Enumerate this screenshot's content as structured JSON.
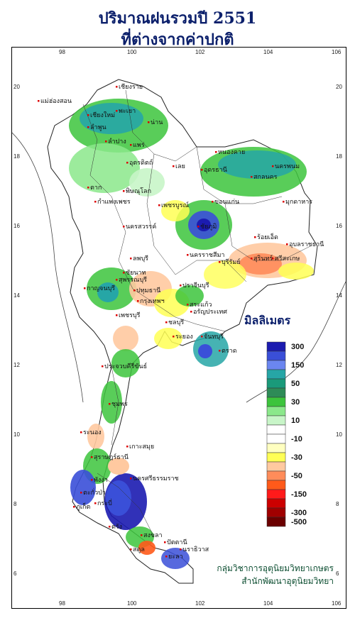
{
  "title_line1": "ปริมาณฝนรวมปี 2551",
  "title_line2": "ที่ต่างจากค่าปกติ",
  "unit_label": "มิลลิเมตร",
  "credit_line1": "กลุ่มวิชาการอุตุนิยมวิทยาเกษตร",
  "credit_line2": "สำนักพัฒนาอุตุนิยมวิทยา",
  "axes": {
    "lon_ticks": [
      "98",
      "100",
      "102",
      "104",
      "106"
    ],
    "lat_ticks": [
      "20",
      "18",
      "16",
      "14",
      "12",
      "10",
      "8",
      "6"
    ]
  },
  "legend": {
    "items": [
      {
        "label": "300",
        "color": "#1b1bb0"
      },
      {
        "label": "",
        "color": "#3a4fd8"
      },
      {
        "label": "150",
        "color": "#6b86f0"
      },
      {
        "label": "",
        "color": "#26a6a6"
      },
      {
        "label": "50",
        "color": "#1a9a7a"
      },
      {
        "label": "",
        "color": "#2e8b57"
      },
      {
        "label": "30",
        "color": "#3cc43c"
      },
      {
        "label": "",
        "color": "#8be88b"
      },
      {
        "label": "10",
        "color": "#c8f5c8"
      },
      {
        "label": "",
        "color": "#ffffff"
      },
      {
        "label": "-10",
        "color": "#ffffff"
      },
      {
        "label": "",
        "color": "#ffffc0"
      },
      {
        "label": "-30",
        "color": "#ffff55"
      },
      {
        "label": "",
        "color": "#ffc9a0"
      },
      {
        "label": "-50",
        "color": "#ff8c5a"
      },
      {
        "label": "",
        "color": "#ff5a1a"
      },
      {
        "label": "-150",
        "color": "#ff1a1a"
      },
      {
        "label": "",
        "color": "#cc0000"
      },
      {
        "label": "-300",
        "color": "#a00000"
      },
      {
        "label": "-500",
        "color": "#6b0000"
      }
    ]
  },
  "place_labels": [
    {
      "name": "เชียงราย"
    },
    {
      "name": "เชียงใหม่"
    },
    {
      "name": "แม่ฮ่องสอน"
    },
    {
      "name": "พะเยา"
    },
    {
      "name": "น่าน"
    },
    {
      "name": "ลำพูน"
    },
    {
      "name": "ลำปาง"
    },
    {
      "name": "แพร่"
    },
    {
      "name": "อุตรดิตถ์"
    },
    {
      "name": "ตาก"
    },
    {
      "name": "พิษณุโลก"
    },
    {
      "name": "กำแพงเพชร"
    },
    {
      "name": "เลย"
    },
    {
      "name": "อุดรธานี"
    },
    {
      "name": "หนองคาย"
    },
    {
      "name": "นครพนม"
    },
    {
      "name": "สกลนคร"
    },
    {
      "name": "มุกดาหาร"
    },
    {
      "name": "ขอนแก่น"
    },
    {
      "name": "เพชรบูรณ์"
    },
    {
      "name": "ชัยภูมิ"
    },
    {
      "name": "นครสวรรค์"
    },
    {
      "name": "ร้อยเอ็ด"
    },
    {
      "name": "อุบลราชธานี"
    },
    {
      "name": "ศรีสะเกษ"
    },
    {
      "name": "สุรินทร์"
    },
    {
      "name": "บุรีรัมย์"
    },
    {
      "name": "นครราชสีมา"
    },
    {
      "name": "ลพบุรี"
    },
    {
      "name": "ชัยนาท"
    },
    {
      "name": "สุพรรณบุรี"
    },
    {
      "name": "กาญจนบุรี"
    },
    {
      "name": "ปทุมธานี"
    },
    {
      "name": "กรุงเทพฯ"
    },
    {
      "name": "ปราจีนบุรี"
    },
    {
      "name": "สระแก้ว"
    },
    {
      "name": "อรัญประเทศ"
    },
    {
      "name": "ชลบุรี"
    },
    {
      "name": "ระยอง"
    },
    {
      "name": "จันทบุรี"
    },
    {
      "name": "ตราด"
    },
    {
      "name": "เพชรบุรี"
    },
    {
      "name": "ประจวบคีรีขันธ์"
    },
    {
      "name": "ชุมพร"
    },
    {
      "name": "ระนอง"
    },
    {
      "name": "สุราษฎร์ธานี"
    },
    {
      "name": "เกาะสมุย"
    },
    {
      "name": "ตะกั่วป่า"
    },
    {
      "name": "พังงา"
    },
    {
      "name": "ภูเก็ต"
    },
    {
      "name": "กระบี่"
    },
    {
      "name": "นครศรีธรรมราช"
    },
    {
      "name": "ตรัง"
    },
    {
      "name": "สงขลา"
    },
    {
      "name": "สตูล"
    },
    {
      "name": "ปัตตานี"
    },
    {
      "name": "ยะลา"
    },
    {
      "name": "นราธิวาส"
    }
  ]
}
